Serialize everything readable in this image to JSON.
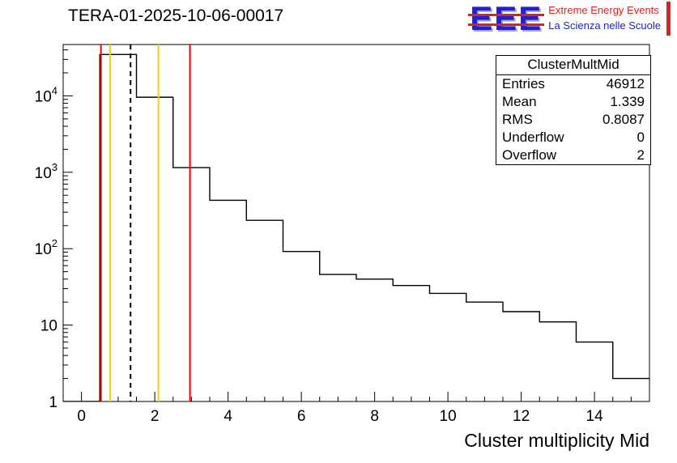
{
  "logo": {
    "acronym": "EEE",
    "line1": "Extreme Energy Events",
    "line2": "La Scienza nelle Scuole",
    "colors": {
      "blue": "#2020d0",
      "red": "#e02020"
    }
  },
  "stats": {
    "title": "ClusterMultMid",
    "rows": [
      {
        "label": "Entries",
        "value": "46912"
      },
      {
        "label": "Mean",
        "value": "1.339"
      },
      {
        "label": "RMS",
        "value": "0.8087"
      },
      {
        "label": "Underflow",
        "value": "0"
      },
      {
        "label": "Overflow",
        "value": "2"
      }
    ]
  },
  "chart_data": {
    "type": "step-histogram",
    "title": "TERA-01-2025-10-06-00017",
    "xlabel": "Cluster multiplicity Mid",
    "ylabel": "",
    "y_scale": "log",
    "grid": false,
    "x_range": [
      -0.5,
      15.5
    ],
    "y_range": [
      1,
      47000
    ],
    "bin_start": -0.5,
    "bin_width": 1,
    "counts": [
      0,
      34800,
      9600,
      1150,
      430,
      235,
      92,
      46,
      40,
      33,
      26,
      20,
      15,
      11,
      6,
      2
    ],
    "line_color": "#000000",
    "x_major_ticks": [
      0,
      2,
      4,
      6,
      8,
      10,
      12,
      14
    ],
    "x_tick_labels": [
      "0",
      "2",
      "4",
      "6",
      "8",
      "10",
      "12",
      "14"
    ],
    "x_minor_step": 0.5,
    "y_major_ticks": [
      1,
      10,
      100,
      1000,
      10000
    ],
    "y_tick_labels": [
      "1",
      "10",
      "10^2",
      "10^3",
      "10^4"
    ],
    "markers": [
      {
        "x": 0.53,
        "color": "#ff0000",
        "dash": false,
        "name": "red-line-low"
      },
      {
        "x": 0.78,
        "color": "#ffcc00",
        "dash": false,
        "name": "yellow-line-low"
      },
      {
        "x": 1.339,
        "color": "#000000",
        "dash": true,
        "name": "mean-dashed-line"
      },
      {
        "x": 2.1,
        "color": "#ffcc00",
        "dash": false,
        "name": "yellow-line-high"
      },
      {
        "x": 2.96,
        "color": "#ff0000",
        "dash": false,
        "name": "red-line-high"
      }
    ]
  }
}
